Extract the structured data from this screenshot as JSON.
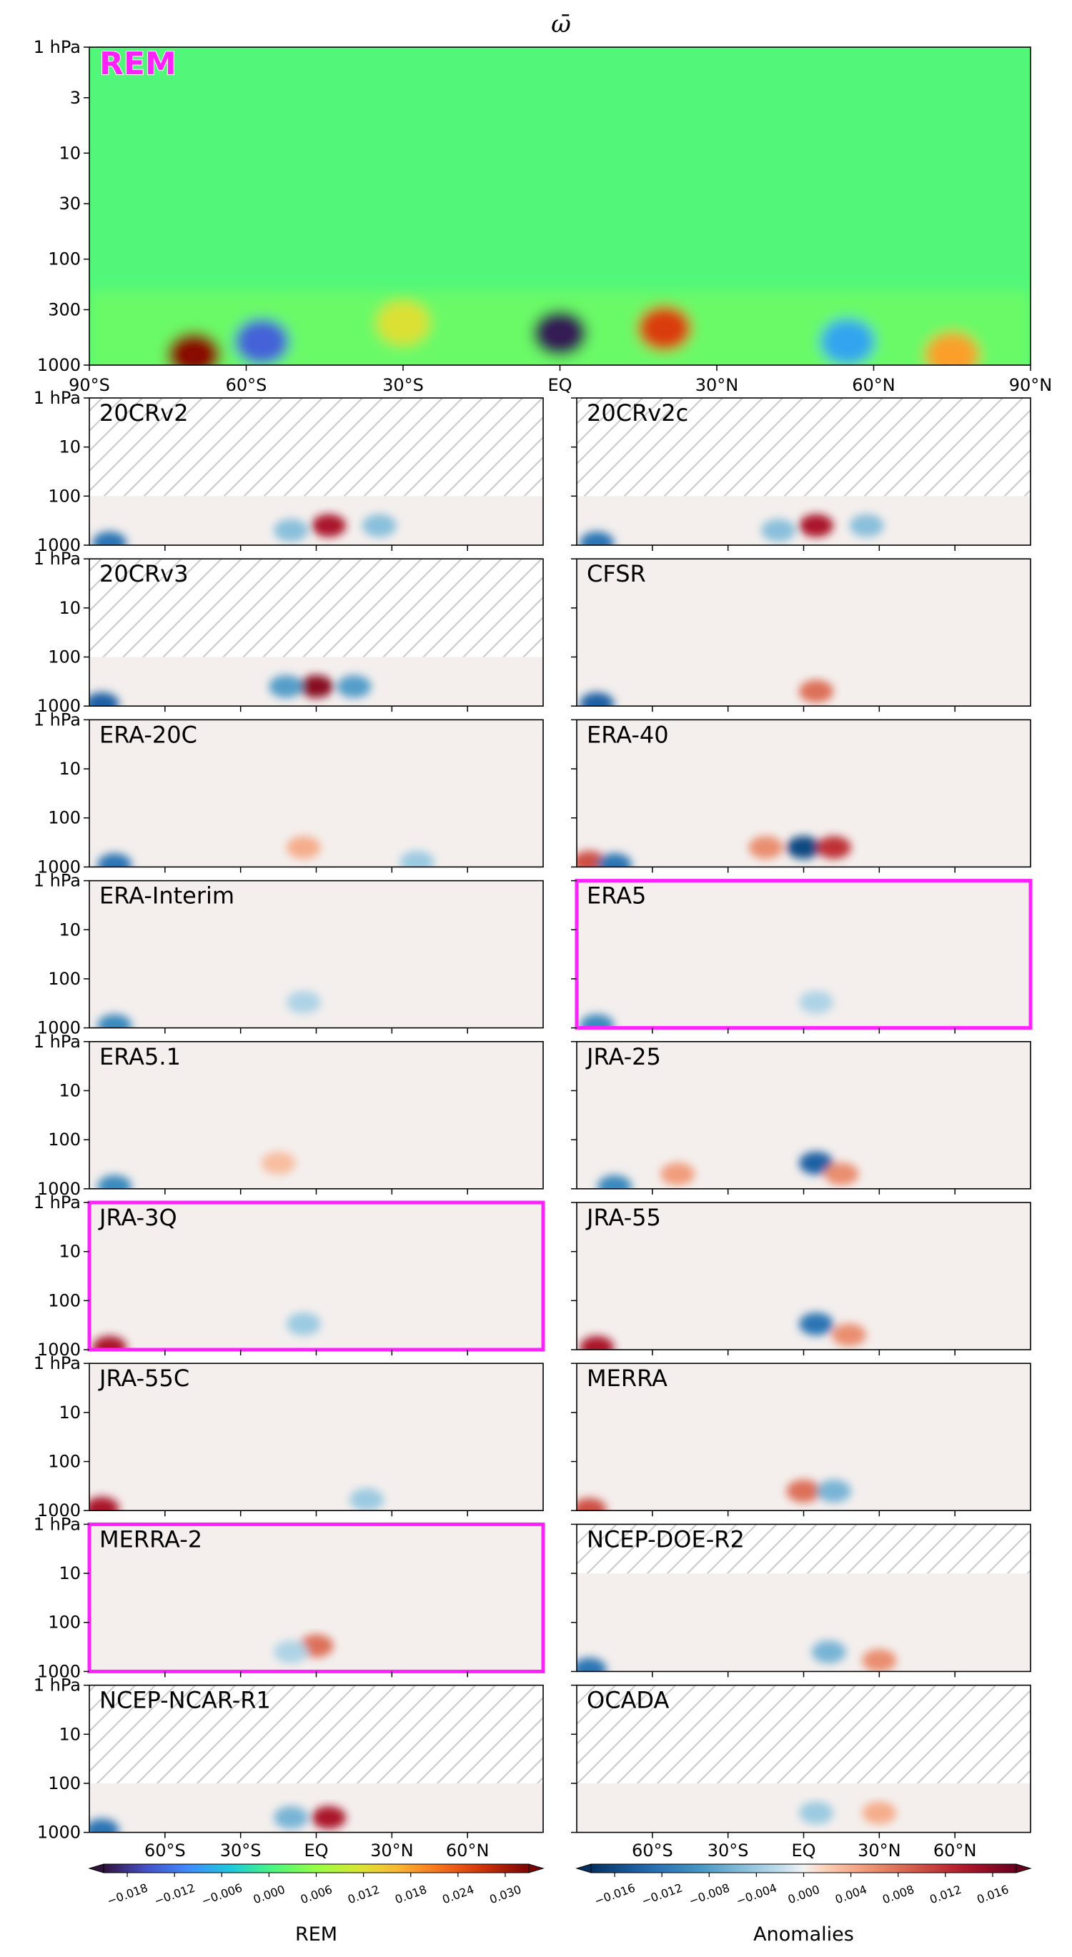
{
  "title": "ω̄",
  "chart_data": [
    {
      "type": "heatmap",
      "panel": "REM",
      "label": "REM",
      "highlighted": false,
      "x_ticks": [
        "90°S",
        "60°S",
        "30°S",
        "EQ",
        "30°N",
        "60°N",
        "90°N"
      ],
      "y_ticks": [
        "1 hPa",
        "3",
        "10",
        "30",
        "100",
        "300",
        "1000"
      ],
      "y_scale": "log",
      "ylim_hPa": [
        1000,
        1
      ],
      "xlim_deg": [
        -90,
        90
      ],
      "blobs": [
        {
          "lat": -70,
          "p": 800,
          "value": 0.032
        },
        {
          "lat": -57,
          "p": 600,
          "value": -0.014
        },
        {
          "lat": -30,
          "p": 400,
          "value": 0.012
        },
        {
          "lat": 0,
          "p": 500,
          "value": -0.02
        },
        {
          "lat": 20,
          "p": 450,
          "value": 0.026
        },
        {
          "lat": 55,
          "p": 600,
          "value": -0.008
        },
        {
          "lat": 75,
          "p": 800,
          "value": 0.018
        }
      ]
    },
    {
      "type": "heatmap",
      "panel": "20CRv2",
      "label": "20CRv2",
      "hatch_above_hPa": 100,
      "highlighted": false,
      "blobs": [
        {
          "lat": -82,
          "p": 900,
          "value": -0.012
        },
        {
          "lat": 5,
          "p": 400,
          "value": 0.014
        },
        {
          "lat": -10,
          "p": 500,
          "value": -0.005
        },
        {
          "lat": 25,
          "p": 400,
          "value": -0.005
        }
      ]
    },
    {
      "type": "heatmap",
      "panel": "20CRv2c",
      "label": "20CRv2c",
      "hatch_above_hPa": 100,
      "highlighted": false,
      "blobs": [
        {
          "lat": -82,
          "p": 900,
          "value": -0.012
        },
        {
          "lat": 5,
          "p": 400,
          "value": 0.014
        },
        {
          "lat": -10,
          "p": 500,
          "value": -0.005
        },
        {
          "lat": 25,
          "p": 400,
          "value": -0.005
        }
      ]
    },
    {
      "type": "heatmap",
      "panel": "20CRv3",
      "label": "20CRv3",
      "hatch_above_hPa": 100,
      "highlighted": false,
      "blobs": [
        {
          "lat": -85,
          "p": 900,
          "value": -0.014
        },
        {
          "lat": 0,
          "p": 400,
          "value": 0.016
        },
        {
          "lat": -12,
          "p": 400,
          "value": -0.008
        },
        {
          "lat": 15,
          "p": 400,
          "value": -0.008
        }
      ]
    },
    {
      "type": "heatmap",
      "panel": "CFSR",
      "label": "CFSR",
      "highlighted": false,
      "blobs": [
        {
          "lat": -82,
          "p": 900,
          "value": -0.014
        },
        {
          "lat": 5,
          "p": 500,
          "value": 0.008
        }
      ]
    },
    {
      "type": "heatmap",
      "panel": "ERA-20C",
      "label": "ERA-20C",
      "highlighted": false,
      "blobs": [
        {
          "lat": -80,
          "p": 900,
          "value": -0.012
        },
        {
          "lat": -5,
          "p": 400,
          "value": 0.004
        },
        {
          "lat": 40,
          "p": 800,
          "value": -0.004
        }
      ]
    },
    {
      "type": "heatmap",
      "panel": "ERA-40",
      "label": "ERA-40",
      "highlighted": false,
      "blobs": [
        {
          "lat": -85,
          "p": 800,
          "value": 0.01
        },
        {
          "lat": -75,
          "p": 900,
          "value": -0.012
        },
        {
          "lat": 0,
          "p": 400,
          "value": -0.016
        },
        {
          "lat": 12,
          "p": 400,
          "value": 0.012
        },
        {
          "lat": -15,
          "p": 400,
          "value": 0.006
        }
      ]
    },
    {
      "type": "heatmap",
      "panel": "ERA-Interim",
      "label": "ERA-Interim",
      "highlighted": false,
      "blobs": [
        {
          "lat": -80,
          "p": 900,
          "value": -0.01
        },
        {
          "lat": -5,
          "p": 300,
          "value": -0.003
        }
      ]
    },
    {
      "type": "heatmap",
      "panel": "ERA5",
      "label": "ERA5",
      "highlighted": true,
      "blobs": [
        {
          "lat": -82,
          "p": 900,
          "value": -0.01
        },
        {
          "lat": 5,
          "p": 300,
          "value": -0.003
        }
      ]
    },
    {
      "type": "heatmap",
      "panel": "ERA5.1",
      "label": "ERA5.1",
      "highlighted": false,
      "blobs": [
        {
          "lat": -80,
          "p": 900,
          "value": -0.01
        },
        {
          "lat": -15,
          "p": 300,
          "value": 0.003
        }
      ]
    },
    {
      "type": "heatmap",
      "panel": "JRA-25",
      "label": "JRA-25",
      "highlighted": false,
      "blobs": [
        {
          "lat": -75,
          "p": 900,
          "value": -0.01
        },
        {
          "lat": 5,
          "p": 300,
          "value": -0.014
        },
        {
          "lat": 15,
          "p": 500,
          "value": 0.006
        },
        {
          "lat": -50,
          "p": 500,
          "value": 0.005
        }
      ]
    },
    {
      "type": "heatmap",
      "panel": "JRA-3Q",
      "label": "JRA-3Q",
      "highlighted": true,
      "blobs": [
        {
          "lat": -82,
          "p": 900,
          "value": 0.014
        },
        {
          "lat": -5,
          "p": 300,
          "value": -0.004
        }
      ]
    },
    {
      "type": "heatmap",
      "panel": "JRA-55",
      "label": "JRA-55",
      "highlighted": false,
      "blobs": [
        {
          "lat": -82,
          "p": 900,
          "value": 0.014
        },
        {
          "lat": 5,
          "p": 300,
          "value": -0.012
        },
        {
          "lat": 18,
          "p": 500,
          "value": 0.006
        }
      ]
    },
    {
      "type": "heatmap",
      "panel": "JRA-55C",
      "label": "JRA-55C",
      "highlighted": false,
      "blobs": [
        {
          "lat": -85,
          "p": 900,
          "value": 0.014
        },
        {
          "lat": 20,
          "p": 600,
          "value": -0.004
        }
      ]
    },
    {
      "type": "heatmap",
      "panel": "MERRA",
      "label": "MERRA",
      "highlighted": false,
      "blobs": [
        {
          "lat": -85,
          "p": 950,
          "value": 0.01
        },
        {
          "lat": 0,
          "p": 400,
          "value": 0.008
        },
        {
          "lat": 12,
          "p": 400,
          "value": -0.006
        }
      ]
    },
    {
      "type": "heatmap",
      "panel": "MERRA-2",
      "label": "MERRA-2",
      "highlighted": true,
      "blobs": [
        {
          "lat": 0,
          "p": 300,
          "value": 0.008
        },
        {
          "lat": -10,
          "p": 400,
          "value": -0.003
        }
      ]
    },
    {
      "type": "heatmap",
      "panel": "NCEP-DOE-R2",
      "label": "NCEP-DOE-R2",
      "hatch_above_hPa": 10,
      "highlighted": false,
      "blobs": [
        {
          "lat": -85,
          "p": 900,
          "value": -0.012
        },
        {
          "lat": 10,
          "p": 400,
          "value": -0.006
        },
        {
          "lat": 30,
          "p": 600,
          "value": 0.006
        }
      ]
    },
    {
      "type": "heatmap",
      "panel": "NCEP-NCAR-R1",
      "label": "NCEP-NCAR-R1",
      "hatch_above_hPa": 100,
      "highlighted": false,
      "blobs": [
        {
          "lat": -85,
          "p": 900,
          "value": -0.012
        },
        {
          "lat": 5,
          "p": 500,
          "value": 0.014
        },
        {
          "lat": -10,
          "p": 500,
          "value": -0.006
        }
      ]
    },
    {
      "type": "heatmap",
      "panel": "OCADA",
      "label": "OCADA",
      "hatch_above_hPa": 100,
      "highlighted": false,
      "blobs": [
        {
          "lat": 5,
          "p": 400,
          "value": -0.004
        },
        {
          "lat": 30,
          "p": 400,
          "value": 0.004
        }
      ]
    }
  ],
  "anomaly_y_ticks": [
    "1 hPa",
    "10",
    "100",
    "1000"
  ],
  "colorbars": [
    {
      "label": "REM",
      "x_ticks": [
        "60°S",
        "30°S",
        "EQ",
        "30°N",
        "60°N"
      ],
      "ticks": [
        "−0.018",
        "−0.012",
        "−0.006",
        "0.000",
        "0.006",
        "0.012",
        "0.018",
        "0.024",
        "0.030"
      ],
      "range": [
        -0.021,
        0.033
      ],
      "colormap": "turbo"
    },
    {
      "label": "Anomalies",
      "x_ticks": [
        "60°S",
        "30°S",
        "EQ",
        "30°N",
        "60°N"
      ],
      "ticks": [
        "−0.016",
        "−0.012",
        "−0.008",
        "−0.004",
        "0.000",
        "0.004",
        "0.008",
        "0.012",
        "0.016"
      ],
      "range": [
        -0.018,
        0.018
      ],
      "colormap": "RdBu_r"
    }
  ],
  "colors": {
    "highlight_frame": "#ff22ff",
    "hatch": "#c8c8c8"
  }
}
